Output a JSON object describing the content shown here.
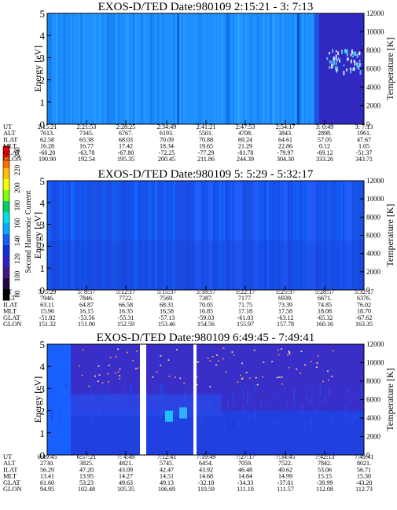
{
  "colorbar": {
    "label": "Second Harmonic Current",
    "ticks": [
      "240",
      "220",
      "200",
      "180",
      "160",
      "140",
      "120",
      "100",
      "80"
    ],
    "colors": [
      "#ff0000",
      "#ff7000",
      "#ffc000",
      "#f0ff00",
      "#80ff00",
      "#00d060",
      "#00e0e0",
      "#00b0ff",
      "#1060ff",
      "#1030e0",
      "#3020c8",
      "#401880",
      "#200840",
      "#000000"
    ]
  },
  "panels": [
    {
      "title": "EXOS-D/TED   Date:980109  2:15:21 - 3: 7:13",
      "ylabel_left": "Energy [eV]",
      "ylabel_right": "Temperature [K]",
      "y_ticks_left": [
        "0",
        "1",
        "2",
        "3",
        "4",
        "5"
      ],
      "y_ticks_right": [
        "0",
        "2000",
        "4000",
        "6000",
        "8000",
        "10000",
        "12000"
      ],
      "table": {
        "row_labels": [
          "UT",
          "ALT",
          "ILAT",
          "MLT",
          "GLAT",
          "GLON"
        ],
        "columns": [
          [
            "2:15:21",
            "7613.",
            "62.58",
            "16.28",
            "-60.20",
            "190.90"
          ],
          [
            "2:21:53",
            "7345.",
            "65.38",
            "16.77",
            "-63.78",
            "192.54"
          ],
          [
            "2:28:25",
            "6767.",
            "68.03",
            "17.42",
            "-67.80",
            "195.35"
          ],
          [
            "2:34:49",
            "6193.",
            "70.09",
            "18.34",
            "-72.25",
            "200.45"
          ],
          [
            "2:41:21",
            "5501.",
            "70.88",
            "19.65",
            "-77.29",
            "211.86"
          ],
          [
            "2:47:53",
            "4708.",
            "69.24",
            "21.29",
            "-81.78",
            "244.39"
          ],
          [
            "2:54:17",
            "3843.",
            "64.61",
            "22.86",
            "-79.97",
            "304.30"
          ],
          [
            "3: 0:49",
            "2898.",
            "57.05",
            "0.12",
            "-69.12",
            "333.26"
          ],
          [
            "3: 7:13",
            "1961.",
            "47.67",
            "1.05",
            "-51.37",
            "343.71"
          ]
        ]
      }
    },
    {
      "title": "EXOS-D/TED   Date:980109  5: 5:29 - 5:32:17",
      "ylabel_left": "Energy [eV]",
      "ylabel_right": "Temperature [K]",
      "y_ticks_left": [
        "0",
        "1",
        "2",
        "3",
        "4",
        "5"
      ],
      "y_ticks_right": [
        "0",
        "2000",
        "4000",
        "6000",
        "8000",
        "10000",
        "12000"
      ],
      "table": {
        "row_labels": [
          "UT",
          "ALT",
          "ILAT",
          "MLT",
          "GLAT",
          "GLON"
        ],
        "columns": [
          [
            "5: 5:29",
            "7946.",
            "63.11",
            "15.96",
            "-51.82",
            "151.32"
          ],
          [
            "5: 8:57",
            "7846.",
            "64.87",
            "16.15",
            "-53.56",
            "151.90"
          ],
          [
            "5:12:17",
            "7722.",
            "66.58",
            "16.35",
            "-55.31",
            "152.59"
          ],
          [
            "5:15:37",
            "7569.",
            "68.31",
            "16.58",
            "-57.13",
            "153.46"
          ],
          [
            "5:18:57",
            "7387.",
            "70.05",
            "16.85",
            "-59.03",
            "154.56"
          ],
          [
            "5:22:17",
            "7177.",
            "71.75",
            "17.18",
            "-61.03",
            "155.97"
          ],
          [
            "5:25:37",
            "6939.",
            "73.39",
            "17.58",
            "-63.12",
            "157.78"
          ],
          [
            "5:28:57",
            "6671.",
            "74.85",
            "18.08",
            "-65.32",
            "160.16"
          ],
          [
            "5:32:17",
            "6376.",
            "76.02",
            "18.70",
            "-67.62",
            "163.35"
          ]
        ]
      }
    },
    {
      "title": "EXOS-D/TED   Date:980109  6:49:45 - 7:49:41",
      "ylabel_left": "Energy [eV]",
      "ylabel_right": "Temperature [K]",
      "y_ticks_left": [
        "0",
        "1",
        "2",
        "3",
        "4",
        "5"
      ],
      "y_ticks_right": [
        "0",
        "2000",
        "4000",
        "6000",
        "8000",
        "10000",
        "12000"
      ],
      "table": {
        "row_labels": [
          "UT",
          "ALT",
          "ILAT",
          "MLT",
          "GLAT",
          "GLON"
        ],
        "columns": [
          [
            "6:49:45",
            "2730.",
            "56.29",
            "13.41",
            "61.60",
            "94.95"
          ],
          [
            "6:57:21",
            "3825.",
            "47.20",
            "13.95",
            "53.23",
            "102.48"
          ],
          [
            "7: 4:49",
            "4821.",
            "43.09",
            "14.27",
            "49.63",
            "105.35"
          ],
          [
            "7:12:41",
            "5745.",
            "42.47",
            "14.51",
            "49.13",
            "106.69"
          ],
          [
            "7:19:49",
            "6454.",
            "43.92",
            "14.68",
            "-32.18",
            "110.59"
          ],
          [
            "7:27:17",
            "7059.",
            "46.48",
            "14.84",
            "-34.33",
            "111.10"
          ],
          [
            "7:34:45",
            "7522.",
            "49.62",
            "14.99",
            "-37.01",
            "111.57"
          ],
          [
            "7:42:13",
            "7842.",
            "53.06",
            "15.15",
            "-39.99",
            "112.08"
          ],
          [
            "7:49:41",
            "8021.",
            "56.71",
            "15.30",
            "-43.20",
            "112.73"
          ]
        ]
      }
    }
  ],
  "chart_data": [
    {
      "type": "heatmap",
      "title": "EXOS-D/TED   Date:980109  2:15:21 - 3: 7:13",
      "xlabel": "UT",
      "ylabel": "Energy [eV]",
      "y2label": "Temperature [K]",
      "x_ticks": [
        "2:15:21",
        "2:21:53",
        "2:28:25",
        "2:34:49",
        "2:41:21",
        "2:47:53",
        "2:54:17",
        "3: 0:49",
        "3: 7:13"
      ],
      "ylim": [
        0,
        5
      ],
      "y2lim": [
        0,
        12000
      ],
      "colorbar_label": "Second Harmonic Current",
      "colorbar_range": [
        80,
        240
      ]
    },
    {
      "type": "heatmap",
      "title": "EXOS-D/TED   Date:980109  5: 5:29 - 5:32:17",
      "xlabel": "UT",
      "ylabel": "Energy [eV]",
      "y2label": "Temperature [K]",
      "x_ticks": [
        "5: 5:29",
        "5: 8:57",
        "5:12:17",
        "5:15:37",
        "5:18:57",
        "5:22:17",
        "5:25:37",
        "5:28:57",
        "5:32:17"
      ],
      "ylim": [
        0,
        5
      ],
      "y2lim": [
        0,
        12000
      ],
      "colorbar_label": "Second Harmonic Current",
      "colorbar_range": [
        80,
        240
      ]
    },
    {
      "type": "heatmap",
      "title": "EXOS-D/TED   Date:980109  6:49:45 - 7:49:41",
      "xlabel": "UT",
      "ylabel": "Energy [eV]",
      "y2label": "Temperature [K]",
      "x_ticks": [
        "6:49:45",
        "6:57:21",
        "7: 4:49",
        "7:12:41",
        "7:19:49",
        "7:27:17",
        "7:34:45",
        "7:42:13",
        "7:49:41"
      ],
      "ylim": [
        0,
        5
      ],
      "y2lim": [
        0,
        12000
      ],
      "colorbar_label": "Second Harmonic Current",
      "colorbar_range": [
        80,
        240
      ]
    }
  ]
}
